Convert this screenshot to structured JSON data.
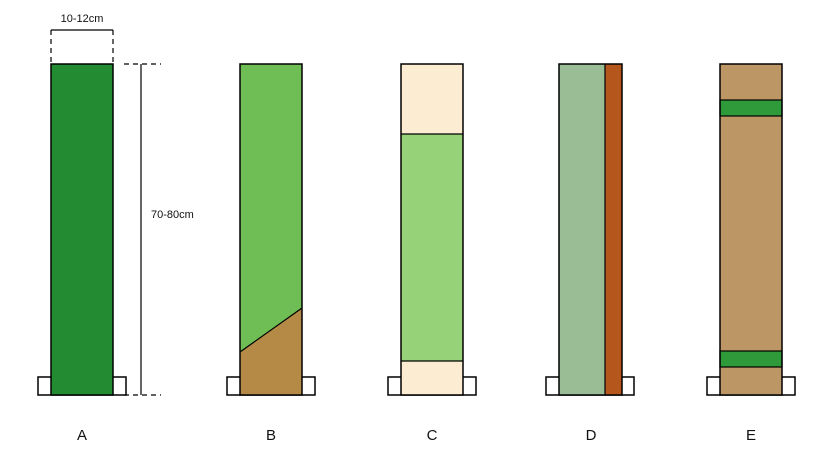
{
  "dimensions": {
    "width_label": "10-12cm",
    "height_label": "70-80cm"
  },
  "strips": [
    {
      "id": "A",
      "label": "A",
      "colors": {
        "main": "#238b32"
      }
    },
    {
      "id": "B",
      "label": "B",
      "colors": {
        "upper": "#6ebe55",
        "lower": "#b58a47"
      }
    },
    {
      "id": "C",
      "label": "C",
      "colors": {
        "ends": "#fcecd2",
        "middle": "#96d278"
      }
    },
    {
      "id": "D",
      "label": "D",
      "colors": {
        "main": "#9bbd96",
        "edge": "#b5561c"
      }
    },
    {
      "id": "E",
      "label": "E",
      "colors": {
        "main": "#bd9665",
        "bands": "#2e9a3a"
      }
    }
  ]
}
